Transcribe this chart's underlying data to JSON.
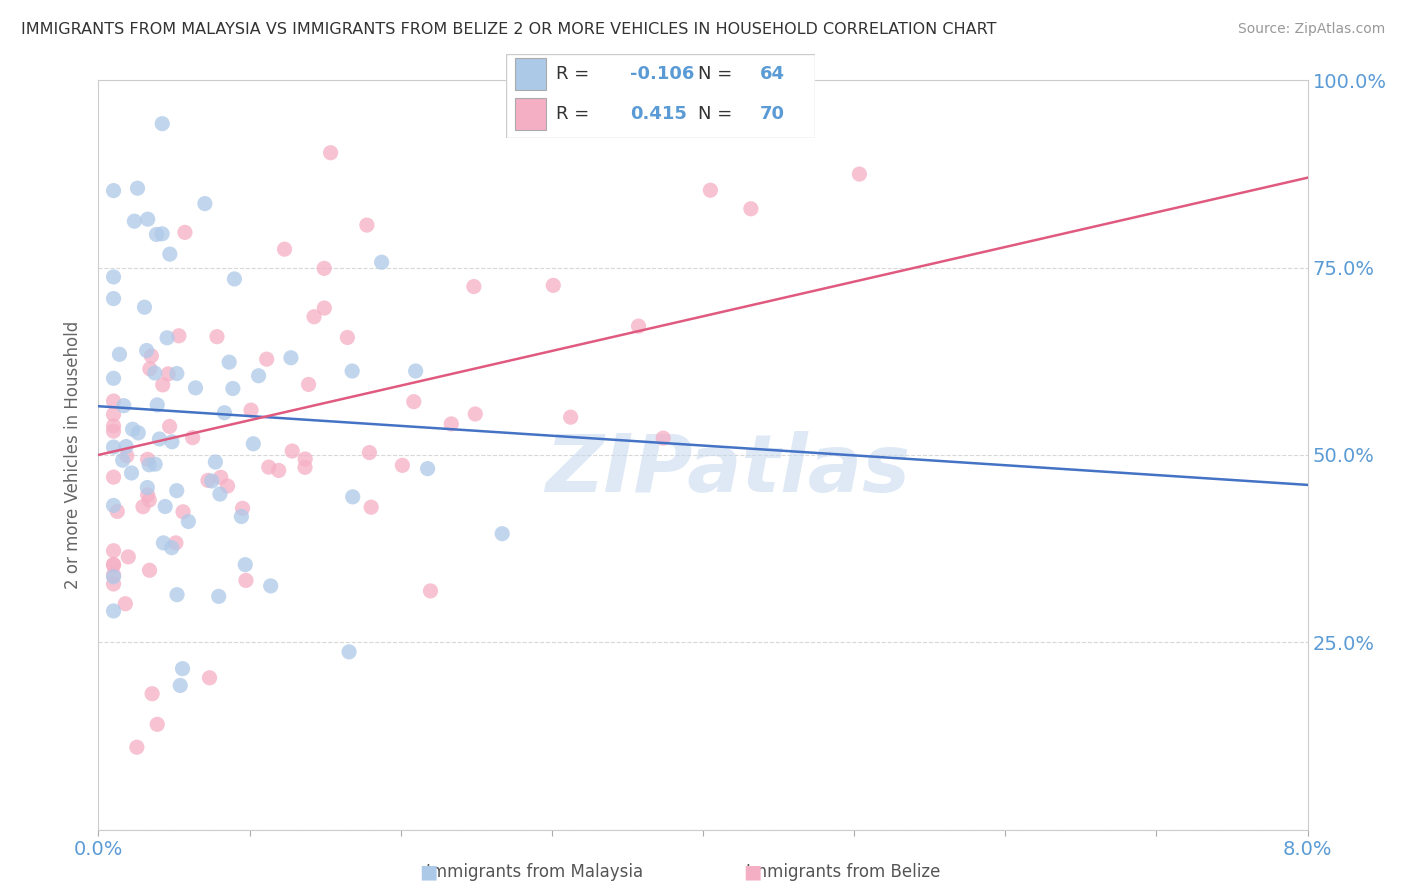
{
  "title": "IMMIGRANTS FROM MALAYSIA VS IMMIGRANTS FROM BELIZE 2 OR MORE VEHICLES IN HOUSEHOLD CORRELATION CHART",
  "source": "Source: ZipAtlas.com",
  "ylabel_label": "2 or more Vehicles in Household",
  "legend_malaysia": "Immigrants from Malaysia",
  "legend_belize": "Immigrants from Belize",
  "R_malaysia": -0.106,
  "N_malaysia": 64,
  "R_belize": 0.415,
  "N_belize": 70,
  "color_malaysia": "#adc9e8",
  "color_belize": "#f5afc5",
  "line_color_malaysia": "#4472c4",
  "line_color_belize": "#e05a80",
  "xmin": 0.0,
  "xmax": 0.08,
  "ymin": 0.0,
  "ymax": 1.0,
  "watermark": "ZIPatlas",
  "background_color": "#ffffff",
  "grid_color": "#d8d8d8",
  "malaysia_trend_y0": 0.565,
  "malaysia_trend_y1": 0.46,
  "belize_trend_y0": 0.5,
  "belize_trend_y1": 0.87
}
